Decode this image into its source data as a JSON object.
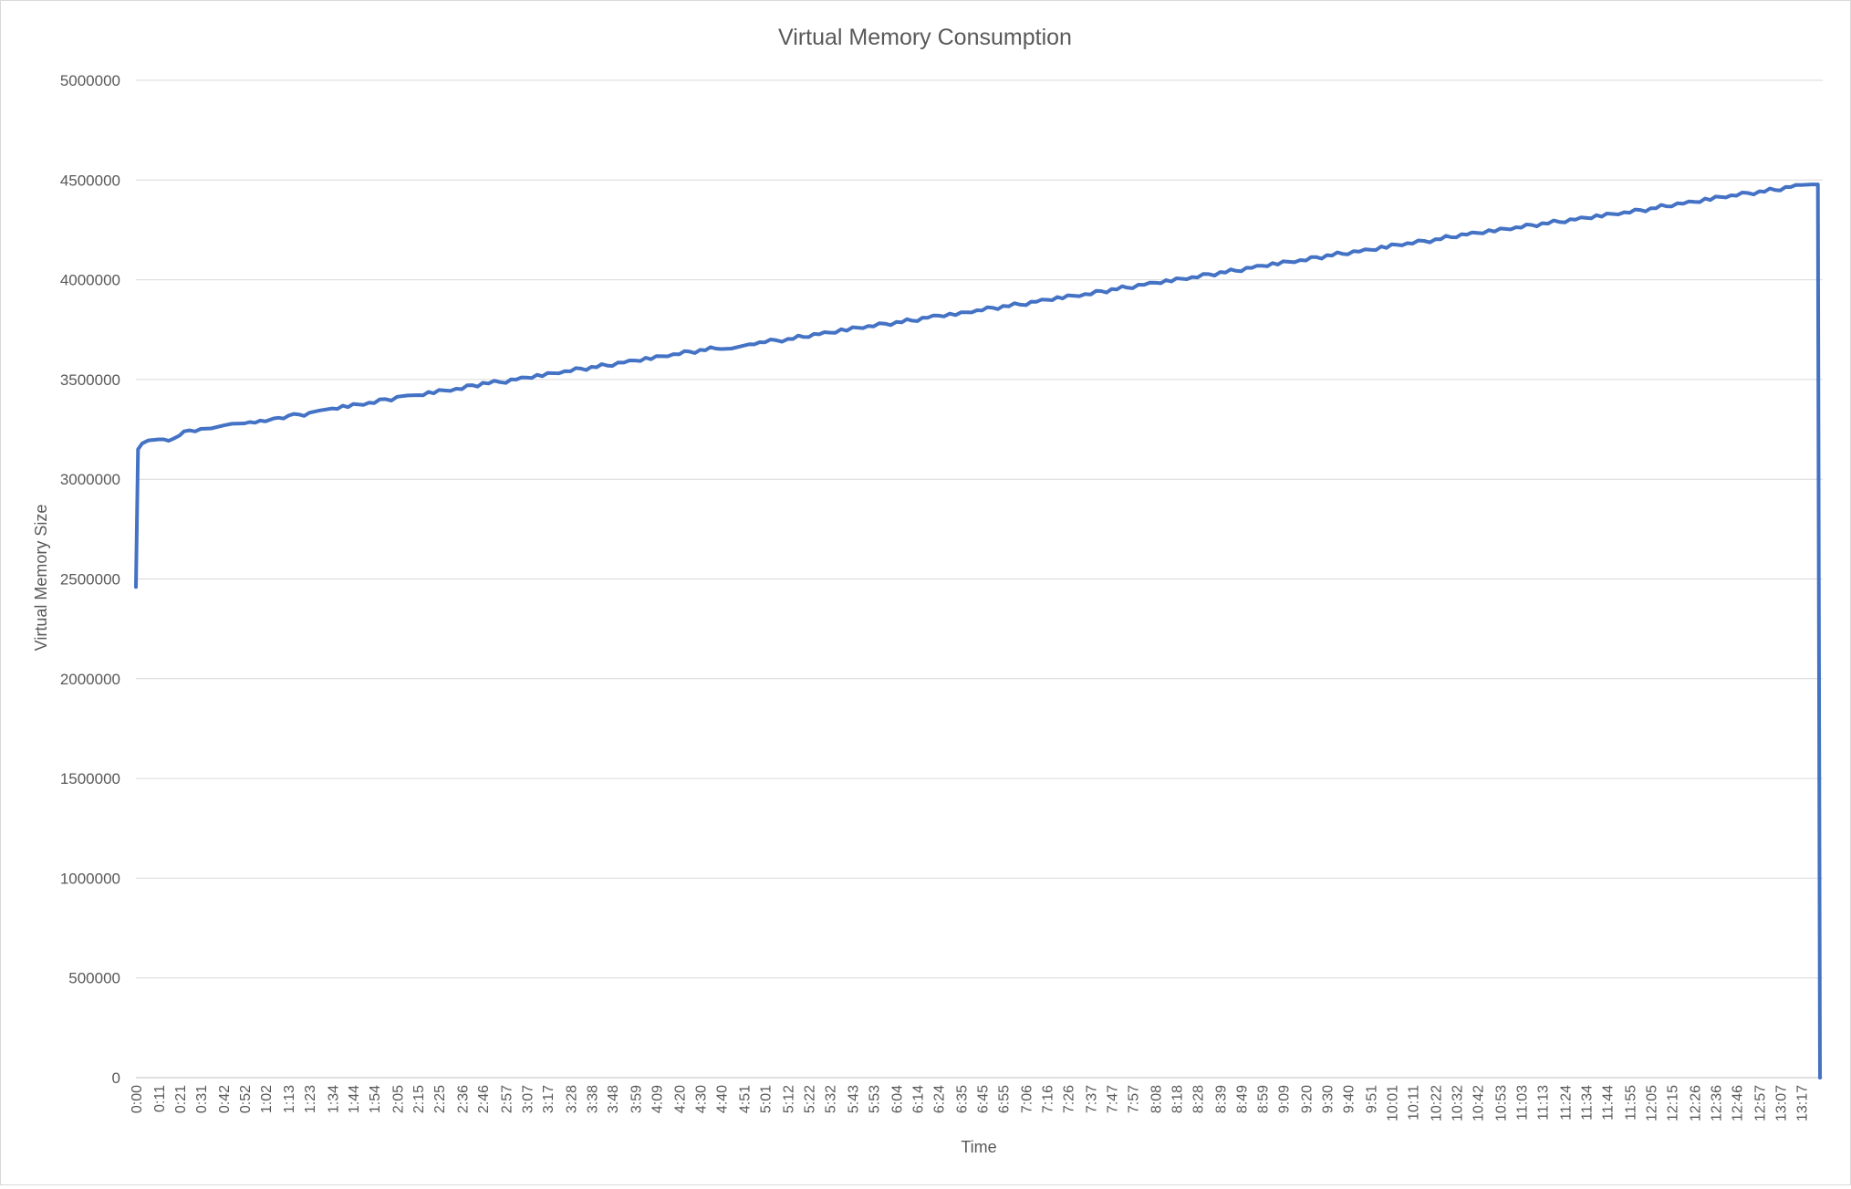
{
  "chart_data": {
    "type": "line",
    "title": "Virtual Memory Consumption",
    "xlabel": "Time",
    "ylabel": "Virtual Memory Size",
    "ylim": [
      0,
      5000000
    ],
    "yticks": [
      0,
      500000,
      1000000,
      1500000,
      2000000,
      2500000,
      3000000,
      3500000,
      4000000,
      4500000,
      5000000
    ],
    "ytick_labels": [
      "0",
      "500000",
      "1000000",
      "1500000",
      "2000000",
      "2500000",
      "3000000",
      "3500000",
      "4000000",
      "4500000",
      "5000000"
    ],
    "x_tick_labels": [
      "0:00",
      "0:11",
      "0:21",
      "0:31",
      "0:42",
      "0:52",
      "1:02",
      "1:13",
      "1:23",
      "1:34",
      "1:44",
      "1:54",
      "2:05",
      "2:15",
      "2:25",
      "2:36",
      "2:46",
      "2:57",
      "3:07",
      "3:17",
      "3:28",
      "3:38",
      "3:48",
      "3:59",
      "4:09",
      "4:20",
      "4:30",
      "4:40",
      "4:51",
      "5:01",
      "5:12",
      "5:22",
      "5:32",
      "5:43",
      "5:53",
      "6:04",
      "6:14",
      "6:24",
      "6:35",
      "6:45",
      "6:55",
      "7:06",
      "7:16",
      "7:26",
      "7:37",
      "7:47",
      "7:57",
      "8:08",
      "8:18",
      "8:28",
      "8:39",
      "8:49",
      "8:59",
      "9:09",
      "9:20",
      "9:30",
      "9:40",
      "9:51",
      "10:01",
      "10:11",
      "10:22",
      "10:32",
      "10:42",
      "10:53",
      "11:03",
      "11:13",
      "11:24",
      "11:34",
      "11:44",
      "11:55",
      "12:05",
      "12:15",
      "12:26",
      "12:36",
      "12:46",
      "12:57",
      "13:07",
      "13:17"
    ],
    "series": [
      {
        "color": "#4472C4",
        "points": [
          [
            "0:00",
            2460000
          ],
          [
            "0:01",
            3150000
          ],
          [
            "0:03",
            3180000
          ],
          [
            "0:06",
            3195000
          ],
          [
            "0:11",
            3200000
          ],
          [
            "0:18",
            3200000
          ],
          [
            "0:21",
            3220000
          ],
          [
            "0:23",
            3240000
          ],
          [
            "0:31",
            3245000
          ],
          [
            "0:36",
            3255000
          ],
          [
            "0:42",
            3270000
          ],
          [
            "0:46",
            3278000
          ],
          [
            "0:52",
            3280000
          ],
          [
            "1:02",
            3290000
          ],
          [
            "1:06",
            3305000
          ],
          [
            "1:13",
            3315000
          ],
          [
            "1:23",
            3330000
          ],
          [
            "1:28",
            3345000
          ],
          [
            "1:34",
            3355000
          ],
          [
            "1:44",
            3370000
          ],
          [
            "1:54",
            3385000
          ],
          [
            "2:05",
            3410000
          ],
          [
            "2:10",
            3420000
          ],
          [
            "2:15",
            3422000
          ],
          [
            "2:25",
            3440000
          ],
          [
            "2:36",
            3455000
          ],
          [
            "2:46",
            3480000
          ],
          [
            "2:57",
            3490000
          ],
          [
            "3:07",
            3510000
          ],
          [
            "3:17",
            3525000
          ],
          [
            "3:28",
            3545000
          ],
          [
            "3:38",
            3560000
          ],
          [
            "3:48",
            3575000
          ],
          [
            "3:59",
            3595000
          ],
          [
            "4:09",
            3610000
          ],
          [
            "4:20",
            3630000
          ],
          [
            "4:30",
            3645000
          ],
          [
            "4:40",
            3660000
          ],
          [
            "4:45",
            3655000
          ],
          [
            "4:51",
            3670000
          ],
          [
            "5:01",
            3690000
          ],
          [
            "5:12",
            3700000
          ],
          [
            "5:22",
            3720000
          ],
          [
            "5:32",
            3735000
          ],
          [
            "5:43",
            3755000
          ],
          [
            "5:53",
            3770000
          ],
          [
            "6:04",
            3785000
          ],
          [
            "6:14",
            3800000
          ],
          [
            "6:24",
            3820000
          ],
          [
            "6:35",
            3830000
          ],
          [
            "6:45",
            3850000
          ],
          [
            "6:55",
            3865000
          ],
          [
            "7:06",
            3880000
          ],
          [
            "7:16",
            3900000
          ],
          [
            "7:26",
            3915000
          ],
          [
            "7:37",
            3930000
          ],
          [
            "7:47",
            3950000
          ],
          [
            "7:57",
            3965000
          ],
          [
            "8:08",
            3985000
          ],
          [
            "8:18",
            4000000
          ],
          [
            "8:28",
            4015000
          ],
          [
            "8:39",
            4035000
          ],
          [
            "8:49",
            4050000
          ],
          [
            "8:59",
            4070000
          ],
          [
            "9:09",
            4085000
          ],
          [
            "9:20",
            4100000
          ],
          [
            "9:30",
            4120000
          ],
          [
            "9:40",
            4135000
          ],
          [
            "9:51",
            4150000
          ],
          [
            "10:01",
            4170000
          ],
          [
            "10:11",
            4185000
          ],
          [
            "10:22",
            4200000
          ],
          [
            "10:32",
            4220000
          ],
          [
            "10:42",
            4235000
          ],
          [
            "10:53",
            4250000
          ],
          [
            "11:03",
            4265000
          ],
          [
            "11:13",
            4280000
          ],
          [
            "11:24",
            4295000
          ],
          [
            "11:34",
            4310000
          ],
          [
            "11:44",
            4325000
          ],
          [
            "11:55",
            4340000
          ],
          [
            "12:05",
            4355000
          ],
          [
            "12:15",
            4375000
          ],
          [
            "12:26",
            4390000
          ],
          [
            "12:36",
            4410000
          ],
          [
            "12:46",
            4425000
          ],
          [
            "12:57",
            4440000
          ],
          [
            "13:07",
            4455000
          ],
          [
            "13:17",
            4475000
          ],
          [
            "13:22",
            4478000
          ],
          [
            "13:25",
            4478000
          ],
          [
            "13:26",
            0
          ]
        ]
      }
    ],
    "grid": true,
    "legend": "none"
  }
}
